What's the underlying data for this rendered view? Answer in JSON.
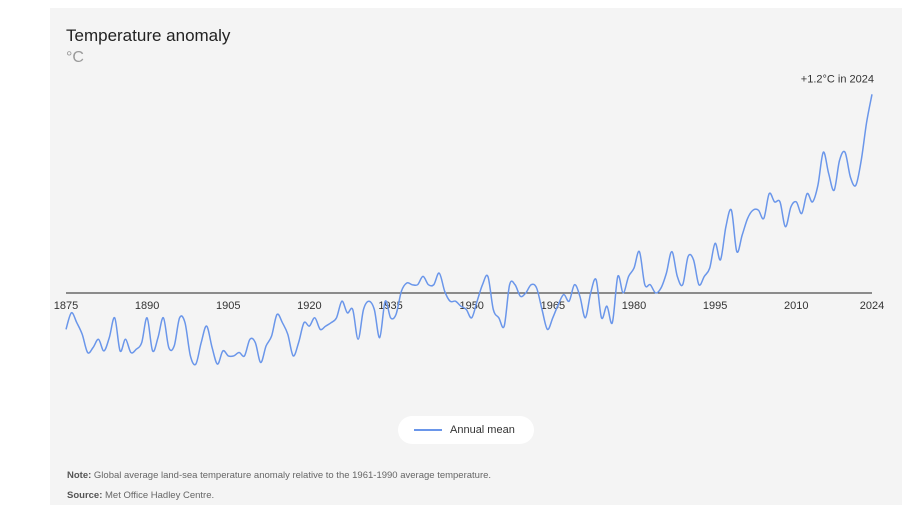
{
  "header": {
    "title": "Temperature anomaly",
    "unit": "°C"
  },
  "legend": {
    "label": "Annual mean"
  },
  "footer": {
    "note_label": "Note:",
    "note_text": " Global average land-sea temperature anomaly relative to the 1961-1990 average temperature.",
    "source_label": "Source:",
    "source_text": " Met Office Hadley Centre."
  },
  "colors": {
    "line": "#6a96ea",
    "axis": "#222222",
    "background": "#f4f4f4"
  },
  "chart_data": {
    "type": "line",
    "title": "Temperature anomaly",
    "ylabel": "°C",
    "xlabel": "",
    "x_ticks": [
      1875,
      1890,
      1905,
      1920,
      1935,
      1950,
      1965,
      1980,
      1995,
      2010,
      2024
    ],
    "xlim": [
      1875,
      2024
    ],
    "ylim": [
      -0.55,
      1.25
    ],
    "grid": false,
    "legend_position": "bottom-center",
    "annotation": {
      "text": "+1.2°C in 2024",
      "x": 2024,
      "y": 1.2
    },
    "series": [
      {
        "name": "Annual mean",
        "x": [
          1875,
          1876,
          1877,
          1878,
          1879,
          1880,
          1881,
          1882,
          1883,
          1884,
          1885,
          1886,
          1887,
          1888,
          1889,
          1890,
          1891,
          1892,
          1893,
          1894,
          1895,
          1896,
          1897,
          1898,
          1899,
          1900,
          1901,
          1902,
          1903,
          1904,
          1905,
          1906,
          1907,
          1908,
          1909,
          1910,
          1911,
          1912,
          1913,
          1914,
          1915,
          1916,
          1917,
          1918,
          1919,
          1920,
          1921,
          1922,
          1923,
          1924,
          1925,
          1926,
          1927,
          1928,
          1929,
          1930,
          1931,
          1932,
          1933,
          1934,
          1935,
          1936,
          1937,
          1938,
          1939,
          1940,
          1941,
          1942,
          1943,
          1944,
          1945,
          1946,
          1947,
          1948,
          1949,
          1950,
          1951,
          1952,
          1953,
          1954,
          1955,
          1956,
          1957,
          1958,
          1959,
          1960,
          1961,
          1962,
          1963,
          1964,
          1965,
          1966,
          1967,
          1968,
          1969,
          1970,
          1971,
          1972,
          1973,
          1974,
          1975,
          1976,
          1977,
          1978,
          1979,
          1980,
          1981,
          1982,
          1983,
          1984,
          1985,
          1986,
          1987,
          1988,
          1989,
          1990,
          1991,
          1992,
          1993,
          1994,
          1995,
          1996,
          1997,
          1998,
          1999,
          2000,
          2001,
          2002,
          2003,
          2004,
          2005,
          2006,
          2007,
          2008,
          2009,
          2010,
          2011,
          2012,
          2013,
          2014,
          2015,
          2016,
          2017,
          2018,
          2019,
          2020,
          2021,
          2022,
          2023,
          2024
        ],
        "values": [
          -0.22,
          -0.12,
          -0.18,
          -0.25,
          -0.36,
          -0.33,
          -0.28,
          -0.35,
          -0.27,
          -0.15,
          -0.35,
          -0.28,
          -0.36,
          -0.34,
          -0.3,
          -0.15,
          -0.35,
          -0.27,
          -0.15,
          -0.33,
          -0.32,
          -0.15,
          -0.18,
          -0.38,
          -0.43,
          -0.3,
          -0.2,
          -0.33,
          -0.43,
          -0.35,
          -0.38,
          -0.38,
          -0.36,
          -0.38,
          -0.28,
          -0.3,
          -0.42,
          -0.32,
          -0.26,
          -0.13,
          -0.18,
          -0.25,
          -0.38,
          -0.3,
          -0.18,
          -0.2,
          -0.15,
          -0.22,
          -0.2,
          -0.18,
          -0.15,
          -0.05,
          -0.12,
          -0.1,
          -0.28,
          -0.1,
          -0.05,
          -0.1,
          -0.27,
          -0.05,
          -0.15,
          -0.13,
          0.01,
          0.06,
          0.05,
          0.05,
          0.1,
          0.05,
          0.05,
          0.12,
          0.01,
          -0.05,
          -0.05,
          -0.08,
          -0.1,
          -0.15,
          -0.05,
          0.05,
          0.1,
          -0.1,
          -0.15,
          -0.2,
          0.05,
          0.05,
          -0.02,
          0.0,
          0.05,
          0.03,
          -0.1,
          -0.22,
          -0.15,
          -0.07,
          -0.01,
          -0.05,
          0.05,
          -0.02,
          -0.15,
          0.0,
          0.08,
          -0.15,
          -0.08,
          -0.18,
          0.1,
          0.0,
          0.1,
          0.15,
          0.25,
          0.05,
          0.05,
          0.0,
          0.03,
          0.12,
          0.25,
          0.1,
          0.05,
          0.22,
          0.2,
          0.05,
          0.1,
          0.15,
          0.3,
          0.2,
          0.4,
          0.5,
          0.25,
          0.35,
          0.45,
          0.5,
          0.5,
          0.45,
          0.6,
          0.55,
          0.55,
          0.4,
          0.52,
          0.55,
          0.48,
          0.6,
          0.55,
          0.65,
          0.85,
          0.72,
          0.62,
          0.8,
          0.85,
          0.7,
          0.65,
          0.8,
          1.03,
          1.2
        ]
      }
    ]
  }
}
